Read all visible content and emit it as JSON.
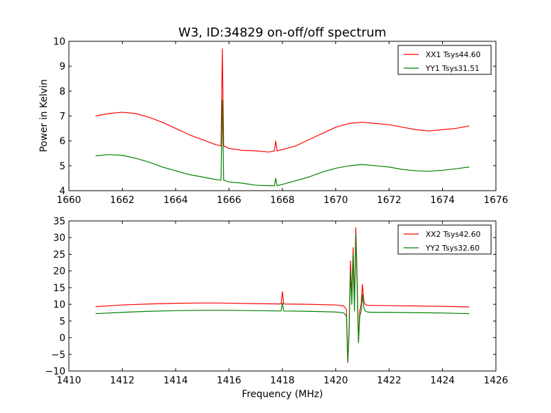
{
  "title": "W3, ID:34829 on-off/off spectrum",
  "colors": {
    "xx": "#ff0000",
    "yy": "#008000",
    "axes": "#000000",
    "background": "#ffffff"
  },
  "chart_data": [
    {
      "type": "line",
      "title": "W3, ID:34829 on-off/off spectrum",
      "xlabel": "",
      "ylabel": "Power in Kelvin",
      "xlim": [
        1660,
        1676
      ],
      "ylim": [
        4,
        10
      ],
      "xticks": [
        1660,
        1662,
        1664,
        1666,
        1668,
        1670,
        1672,
        1674,
        1676
      ],
      "yticks": [
        4,
        5,
        6,
        7,
        8,
        9,
        10
      ],
      "grid": false,
      "legend": "top-right",
      "series": [
        {
          "name": "XX1 Tsys44.60",
          "color": "#ff0000",
          "x": [
            1661.0,
            1661.5,
            1662.0,
            1662.5,
            1663.0,
            1663.5,
            1664.0,
            1664.5,
            1665.0,
            1665.5,
            1665.7,
            1665.75,
            1665.8,
            1666.0,
            1666.5,
            1667.0,
            1667.5,
            1667.7,
            1667.75,
            1667.8,
            1668.0,
            1668.5,
            1669.0,
            1669.5,
            1670.0,
            1670.5,
            1671.0,
            1671.5,
            1672.0,
            1672.5,
            1673.0,
            1673.5,
            1674.0,
            1674.5,
            1675.0
          ],
          "y": [
            7.0,
            7.1,
            7.15,
            7.1,
            6.95,
            6.75,
            6.5,
            6.25,
            6.05,
            5.85,
            5.8,
            9.7,
            5.8,
            5.7,
            5.62,
            5.6,
            5.55,
            5.6,
            6.0,
            5.6,
            5.65,
            5.8,
            6.05,
            6.3,
            6.55,
            6.7,
            6.75,
            6.7,
            6.65,
            6.55,
            6.45,
            6.4,
            6.45,
            6.5,
            6.6
          ]
        },
        {
          "name": "YY1 Tsys31.51",
          "color": "#008000",
          "x": [
            1661.0,
            1661.5,
            1662.0,
            1662.5,
            1663.0,
            1663.5,
            1664.0,
            1664.5,
            1665.0,
            1665.5,
            1665.7,
            1665.75,
            1665.8,
            1666.0,
            1666.5,
            1667.0,
            1667.5,
            1667.7,
            1667.75,
            1667.8,
            1668.0,
            1668.5,
            1669.0,
            1669.5,
            1670.0,
            1670.5,
            1671.0,
            1671.5,
            1672.0,
            1672.5,
            1673.0,
            1673.5,
            1674.0,
            1674.5,
            1675.0
          ],
          "y": [
            5.4,
            5.45,
            5.42,
            5.3,
            5.15,
            4.95,
            4.8,
            4.65,
            4.55,
            4.45,
            4.42,
            7.65,
            4.42,
            4.35,
            4.3,
            4.22,
            4.2,
            4.2,
            4.5,
            4.2,
            4.25,
            4.4,
            4.55,
            4.75,
            4.9,
            5.0,
            5.05,
            5.0,
            4.95,
            4.85,
            4.8,
            4.78,
            4.82,
            4.88,
            4.95
          ]
        }
      ]
    },
    {
      "type": "line",
      "title": "",
      "xlabel": "Frequency (MHz)",
      "ylabel": "",
      "xlim": [
        1410,
        1426
      ],
      "ylim": [
        -10,
        35
      ],
      "xticks": [
        1410,
        1412,
        1414,
        1416,
        1418,
        1420,
        1422,
        1424,
        1426
      ],
      "yticks": [
        -10,
        -5,
        0,
        5,
        10,
        15,
        20,
        25,
        30,
        35
      ],
      "grid": false,
      "legend": "top-right",
      "series": [
        {
          "name": "XX2 Tsys42.60",
          "color": "#ff0000",
          "x": [
            1411.0,
            1412.0,
            1413.0,
            1414.0,
            1415.0,
            1415.5,
            1416.0,
            1417.0,
            1417.95,
            1418.0,
            1418.05,
            1419.0,
            1420.0,
            1420.3,
            1420.4,
            1420.45,
            1420.5,
            1420.55,
            1420.6,
            1420.65,
            1420.7,
            1420.75,
            1420.8,
            1420.85,
            1420.9,
            1420.95,
            1421.0,
            1421.05,
            1421.1,
            1421.15,
            1421.2,
            1421.3,
            1422.0,
            1423.0,
            1424.0,
            1425.0
          ],
          "y": [
            9.3,
            9.8,
            10.1,
            10.3,
            10.4,
            10.4,
            10.35,
            10.2,
            10.1,
            13.8,
            10.1,
            10.0,
            9.8,
            9.5,
            8.5,
            -7.5,
            2.0,
            23.0,
            12.0,
            27.0,
            10.0,
            33.0,
            18.0,
            -1.0,
            8.0,
            10.0,
            16.0,
            11.0,
            10.0,
            9.8,
            9.7,
            9.7,
            9.6,
            9.5,
            9.4,
            9.2
          ]
        },
        {
          "name": "YY2 Tsys32.60",
          "color": "#008000",
          "x": [
            1411.0,
            1412.0,
            1413.0,
            1414.0,
            1415.0,
            1415.5,
            1416.0,
            1417.0,
            1417.95,
            1418.0,
            1418.05,
            1419.0,
            1420.0,
            1420.3,
            1420.4,
            1420.45,
            1420.5,
            1420.55,
            1420.6,
            1420.65,
            1420.7,
            1420.75,
            1420.8,
            1420.85,
            1420.9,
            1420.95,
            1421.0,
            1421.05,
            1421.1,
            1421.15,
            1421.2,
            1421.3,
            1422.0,
            1423.0,
            1424.0,
            1425.0
          ],
          "y": [
            7.2,
            7.6,
            7.9,
            8.1,
            8.2,
            8.2,
            8.2,
            8.1,
            8.0,
            10.5,
            8.0,
            7.9,
            7.7,
            7.4,
            6.5,
            -7.0,
            2.5,
            20.0,
            10.0,
            25.0,
            8.0,
            31.0,
            16.0,
            -1.5,
            6.5,
            8.0,
            13.0,
            9.0,
            8.0,
            7.8,
            7.7,
            7.6,
            7.6,
            7.5,
            7.4,
            7.2
          ]
        }
      ]
    }
  ]
}
